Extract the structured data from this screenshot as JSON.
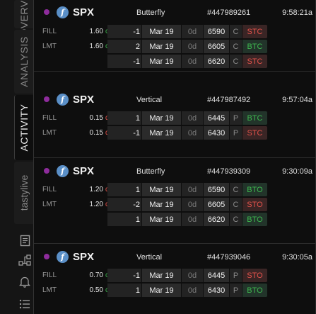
{
  "tabs": [
    {
      "id": "overview",
      "label": "OVERVIEW"
    },
    {
      "id": "analysis",
      "label": "ANALYSIS"
    },
    {
      "id": "activity",
      "label": "ACTIVITY"
    },
    {
      "id": "tastylive",
      "label": "tastylive"
    }
  ],
  "rail_icons": [
    "notes-icon",
    "network-icon",
    "bell-icon",
    "list-icon"
  ],
  "colors": {
    "credit": "#3fb950",
    "debit": "#e5534b",
    "status_dot": "#8e2c9c",
    "badge": "#5a8fc7"
  },
  "orders": [
    {
      "symbol": "SPX",
      "badge": "f",
      "strategy": "Butterfly",
      "order_id": "#447989261",
      "time": "9:58:21a",
      "fill": {
        "label": "FILL",
        "price": "1.60",
        "suffix": "cr"
      },
      "limit": {
        "label": "LMT",
        "price": "1.60",
        "suffix": "cr"
      },
      "legs": [
        {
          "qty": "-1",
          "exp": "Mar 19",
          "dte": "0d",
          "strike": "6590",
          "cp": "C",
          "action": "STC"
        },
        {
          "qty": "2",
          "exp": "Mar 19",
          "dte": "0d",
          "strike": "6605",
          "cp": "C",
          "action": "BTC"
        },
        {
          "qty": "-1",
          "exp": "Mar 19",
          "dte": "0d",
          "strike": "6620",
          "cp": "C",
          "action": "STC"
        }
      ]
    },
    {
      "symbol": "SPX",
      "badge": "f",
      "strategy": "Vertical",
      "order_id": "#447987492",
      "time": "9:57:04a",
      "fill": {
        "label": "FILL",
        "price": "0.15",
        "suffix": "db"
      },
      "limit": {
        "label": "LMT",
        "price": "0.15",
        "suffix": "db"
      },
      "legs": [
        {
          "qty": "1",
          "exp": "Mar 19",
          "dte": "0d",
          "strike": "6445",
          "cp": "P",
          "action": "BTC"
        },
        {
          "qty": "-1",
          "exp": "Mar 19",
          "dte": "0d",
          "strike": "6430",
          "cp": "P",
          "action": "STC"
        }
      ]
    },
    {
      "symbol": "SPX",
      "badge": "f",
      "strategy": "Butterfly",
      "order_id": "#447939309",
      "time": "9:30:09a",
      "fill": {
        "label": "FILL",
        "price": "1.20",
        "suffix": "db"
      },
      "limit": {
        "label": "LMT",
        "price": "1.20",
        "suffix": "db"
      },
      "legs": [
        {
          "qty": "1",
          "exp": "Mar 19",
          "dte": "0d",
          "strike": "6590",
          "cp": "C",
          "action": "BTO"
        },
        {
          "qty": "-2",
          "exp": "Mar 19",
          "dte": "0d",
          "strike": "6605",
          "cp": "C",
          "action": "STO"
        },
        {
          "qty": "1",
          "exp": "Mar 19",
          "dte": "0d",
          "strike": "6620",
          "cp": "C",
          "action": "BTO"
        }
      ]
    },
    {
      "symbol": "SPX",
      "badge": "f",
      "strategy": "Vertical",
      "order_id": "#447939046",
      "time": "9:30:05a",
      "fill": {
        "label": "FILL",
        "price": "0.70",
        "suffix": "cr"
      },
      "limit": {
        "label": "LMT",
        "price": "0.50",
        "suffix": "cr"
      },
      "legs": [
        {
          "qty": "-1",
          "exp": "Mar 19",
          "dte": "0d",
          "strike": "6445",
          "cp": "P",
          "action": "STO"
        },
        {
          "qty": "1",
          "exp": "Mar 19",
          "dte": "0d",
          "strike": "6430",
          "cp": "P",
          "action": "BTO"
        }
      ]
    }
  ]
}
